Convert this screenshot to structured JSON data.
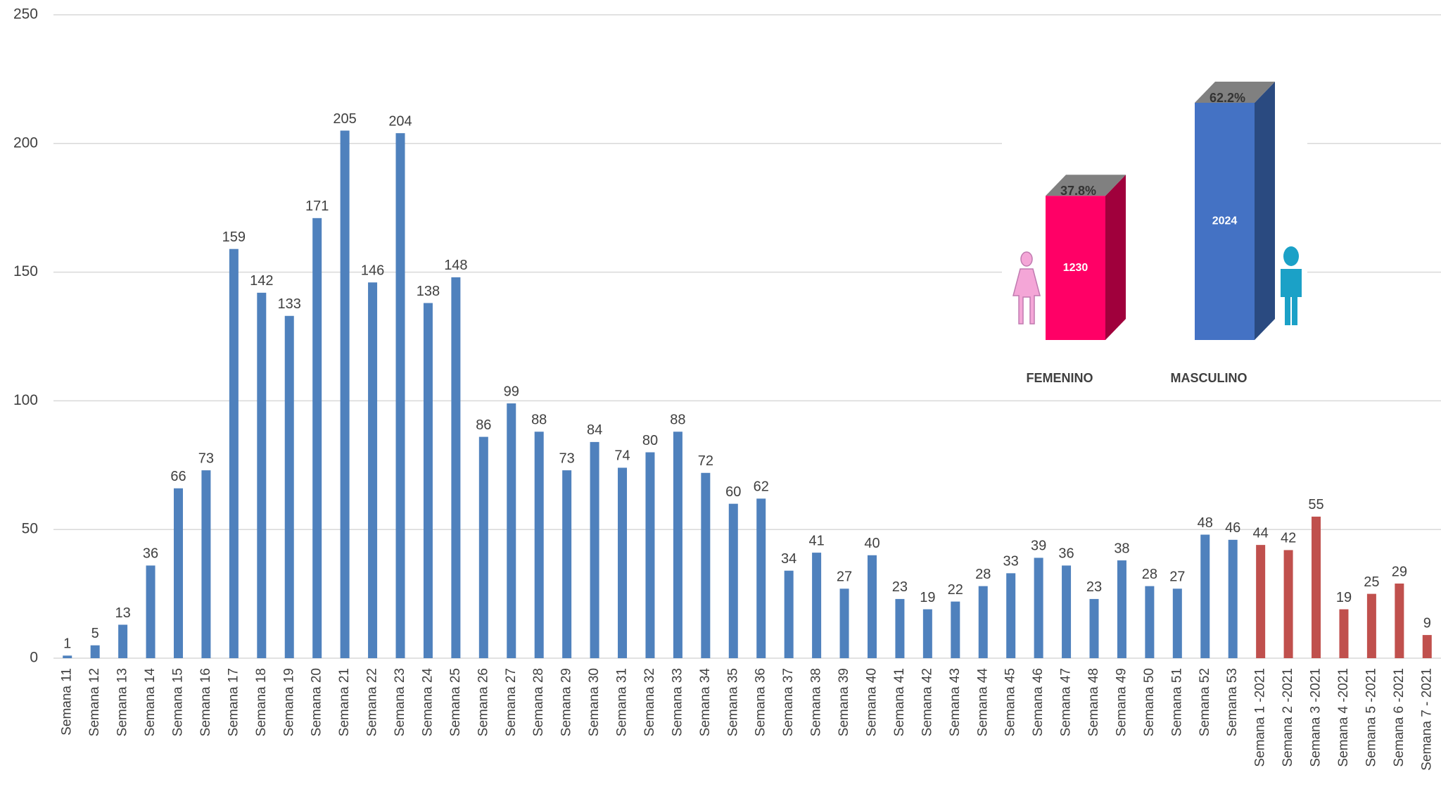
{
  "chart_data": [
    {
      "type": "bar",
      "categories": [
        "Semana 11",
        "Semana 12",
        "Semana 13",
        "Semana 14",
        "Semana 15",
        "Semana 16",
        "Semana 17",
        "Semana 18",
        "Semana 19",
        "Semana 20",
        "Semana 21",
        "Semana 22",
        "Semana 23",
        "Semana 24",
        "Semana 25",
        "Semana 26",
        "Semana 27",
        "Semana 28",
        "Semana 29",
        "Semana 30",
        "Semana 31",
        "Semana 32",
        "Semana 33",
        "Semana 34",
        "Semana 35",
        "Semana 36",
        "Semana 37",
        "Semana 38",
        "Semana 39",
        "Semana 40",
        "Semana 41",
        "Semana 42",
        "Semana 43",
        "Semana 44",
        "Semana 45",
        "Semana 46",
        "Semana 47",
        "Semana 48",
        "Semana 49",
        "Semana 50",
        "Semana 51",
        "Semana 52",
        "Semana 53",
        "Semana 1 -2021",
        "Semana 2 -2021",
        "Semana 3 -2021",
        "Semana 4 -2021",
        "Semana 5 -2021",
        "Semana 6 -2021",
        "Semana 7 - 2021"
      ],
      "values": [
        1,
        5,
        13,
        36,
        66,
        73,
        159,
        142,
        133,
        171,
        205,
        146,
        204,
        138,
        148,
        86,
        99,
        88,
        73,
        84,
        74,
        80,
        88,
        72,
        60,
        62,
        34,
        41,
        27,
        40,
        23,
        19,
        22,
        28,
        33,
        39,
        36,
        23,
        38,
        28,
        27,
        48,
        46,
        44,
        42,
        55,
        19,
        25,
        29,
        9
      ],
      "colors": [
        "#4f81bd",
        "#4f81bd",
        "#4f81bd",
        "#4f81bd",
        "#4f81bd",
        "#4f81bd",
        "#4f81bd",
        "#4f81bd",
        "#4f81bd",
        "#4f81bd",
        "#4f81bd",
        "#4f81bd",
        "#4f81bd",
        "#4f81bd",
        "#4f81bd",
        "#4f81bd",
        "#4f81bd",
        "#4f81bd",
        "#4f81bd",
        "#4f81bd",
        "#4f81bd",
        "#4f81bd",
        "#4f81bd",
        "#4f81bd",
        "#4f81bd",
        "#4f81bd",
        "#4f81bd",
        "#4f81bd",
        "#4f81bd",
        "#4f81bd",
        "#4f81bd",
        "#4f81bd",
        "#4f81bd",
        "#4f81bd",
        "#4f81bd",
        "#4f81bd",
        "#4f81bd",
        "#4f81bd",
        "#4f81bd",
        "#4f81bd",
        "#4f81bd",
        "#4f81bd",
        "#4f81bd",
        "#c0504d",
        "#c0504d",
        "#c0504d",
        "#c0504d",
        "#c0504d",
        "#c0504d",
        "#c0504d"
      ],
      "ylim": [
        0,
        250
      ],
      "yticks": [
        0,
        50,
        100,
        150,
        200,
        250
      ],
      "grid": true
    },
    {
      "type": "bar3d",
      "categories": [
        "FEMENINO",
        "MASCULINO"
      ],
      "values": [
        1230,
        2024
      ],
      "shares": [
        37.8,
        62.2
      ],
      "share_labels": [
        "37.8%",
        "62.2%"
      ],
      "colors": [
        "#ff0066",
        "#4472c4"
      ],
      "ylim": [
        0,
        2024
      ]
    }
  ]
}
